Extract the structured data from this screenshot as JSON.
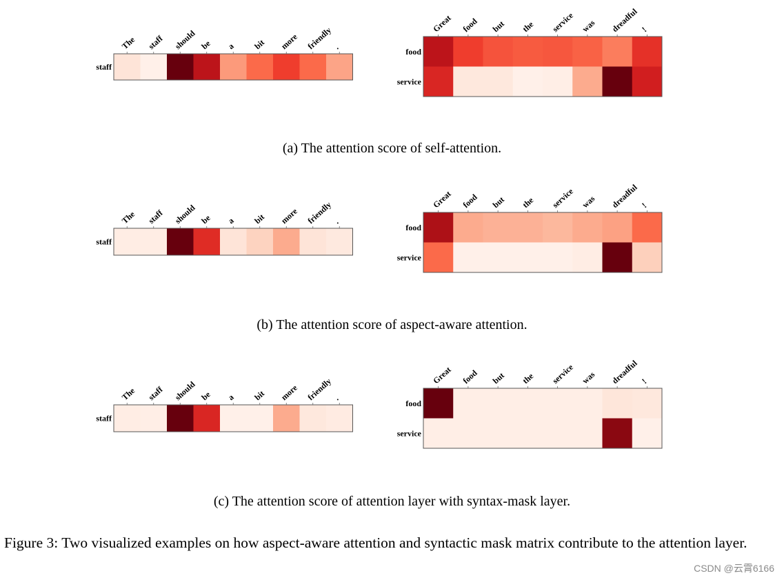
{
  "chart_data": [
    {
      "type": "heatmap",
      "panel": "a",
      "side": "left",
      "x": [
        "The",
        "staff",
        "should",
        "be",
        "a",
        "bit",
        "more",
        "friendly",
        "."
      ],
      "y": [
        "staff"
      ],
      "values": [
        [
          0.1,
          0.03,
          1.0,
          0.8,
          0.35,
          0.5,
          0.62,
          0.5,
          0.32
        ]
      ]
    },
    {
      "type": "heatmap",
      "panel": "a",
      "side": "right",
      "x": [
        "Great",
        "food",
        "but",
        "the",
        "service",
        "was",
        "dreadful",
        "!"
      ],
      "y": [
        "food",
        "service"
      ],
      "values": [
        [
          0.8,
          0.62,
          0.56,
          0.54,
          0.55,
          0.52,
          0.44,
          0.66
        ],
        [
          0.7,
          0.08,
          0.08,
          0.03,
          0.04,
          0.3,
          1.0,
          0.73
        ]
      ]
    },
    {
      "type": "heatmap",
      "panel": "b",
      "side": "left",
      "x": [
        "The",
        "staff",
        "should",
        "be",
        "a",
        "bit",
        "more",
        "friendly",
        "."
      ],
      "y": [
        "staff"
      ],
      "values": [
        [
          0.05,
          0.05,
          1.0,
          0.68,
          0.1,
          0.17,
          0.3,
          0.1,
          0.07
        ]
      ]
    },
    {
      "type": "heatmap",
      "panel": "b",
      "side": "right",
      "x": [
        "Great",
        "food",
        "but",
        "the",
        "service",
        "was",
        "dreadful",
        "!"
      ],
      "y": [
        "food",
        "service"
      ],
      "values": [
        [
          0.85,
          0.3,
          0.28,
          0.28,
          0.26,
          0.3,
          0.33,
          0.5
        ],
        [
          0.5,
          0.03,
          0.03,
          0.03,
          0.03,
          0.05,
          1.0,
          0.18
        ]
      ]
    },
    {
      "type": "heatmap",
      "panel": "c",
      "side": "left",
      "x": [
        "The",
        "staff",
        "should",
        "be",
        "a",
        "bit",
        "more",
        "friendly",
        "."
      ],
      "y": [
        "staff"
      ],
      "values": [
        [
          0.05,
          0.04,
          1.0,
          0.7,
          0.03,
          0.03,
          0.3,
          0.08,
          0.06
        ]
      ]
    },
    {
      "type": "heatmap",
      "panel": "c",
      "side": "right",
      "x": [
        "Great",
        "food",
        "but",
        "the",
        "service",
        "was",
        "dreadful",
        "!"
      ],
      "y": [
        "food",
        "service"
      ],
      "values": [
        [
          1.0,
          0.04,
          0.04,
          0.04,
          0.04,
          0.04,
          0.09,
          0.08
        ],
        [
          0.04,
          0.04,
          0.04,
          0.04,
          0.04,
          0.04,
          0.93,
          0.03
        ]
      ]
    }
  ],
  "captions": {
    "a": "(a)  The attention score of self-attention.",
    "b": "(b)  The attention score of aspect-aware attention.",
    "c": "(c)  The attention score of attention layer with syntax-mask layer."
  },
  "figure_caption": "Figure 3:  Two visualized examples on how aspect-aware attention and syntactic mask matrix contribute to the attention layer.",
  "watermark": "CSDN @云霄6166",
  "colormap": [
    "#fff5f0",
    "#fee0d2",
    "#fcbba1",
    "#fc9272",
    "#fb6a4a",
    "#ef3b2c",
    "#cb181d",
    "#a50f15",
    "#67000d"
  ]
}
